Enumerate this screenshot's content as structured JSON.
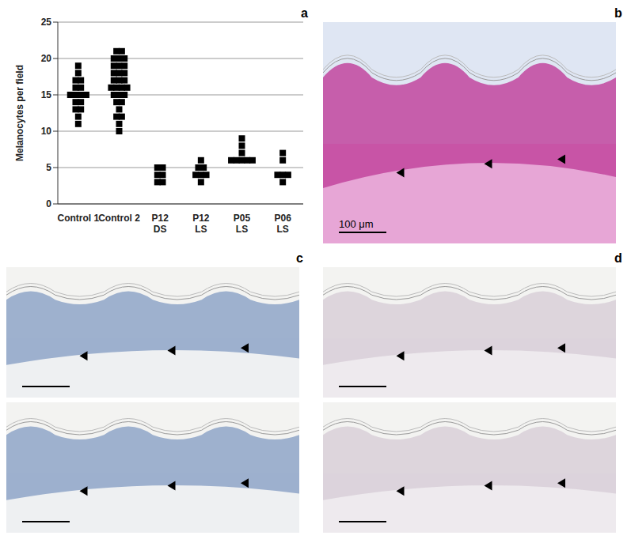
{
  "chart_data": {
    "type": "scatter",
    "panel": "a",
    "y_label": "Melanocytes per field",
    "categories": [
      "Control 1",
      "Control 2",
      "P12\nDS",
      "P12\nLS",
      "P05\nLS",
      "P06\nLS"
    ],
    "values": [
      [
        19,
        18,
        17,
        17,
        16,
        16,
        15,
        15,
        15,
        15,
        14,
        14,
        13,
        13,
        12,
        11
      ],
      [
        21,
        21,
        20,
        20,
        20,
        19,
        19,
        19,
        18,
        18,
        18,
        17,
        17,
        17,
        16,
        16,
        16,
        16,
        15,
        15,
        15,
        14,
        14,
        13,
        12,
        12,
        11,
        10
      ],
      [
        5,
        5,
        4,
        4,
        3,
        3
      ],
      [
        6,
        5,
        5,
        4,
        4,
        4,
        3
      ],
      [
        9,
        8,
        7,
        6,
        6,
        6,
        6,
        6
      ],
      [
        7,
        6,
        4,
        4,
        4,
        3
      ]
    ],
    "color": "#000000",
    "marker": "square",
    "ylim": [
      0,
      25
    ],
    "yticks": [
      0,
      5,
      10,
      15,
      20,
      25
    ],
    "grid": true
  },
  "images": [
    {
      "panel": "b",
      "scale_bar": "100 μm"
    },
    {
      "panel": "c"
    },
    {
      "panel": "d"
    }
  ]
}
